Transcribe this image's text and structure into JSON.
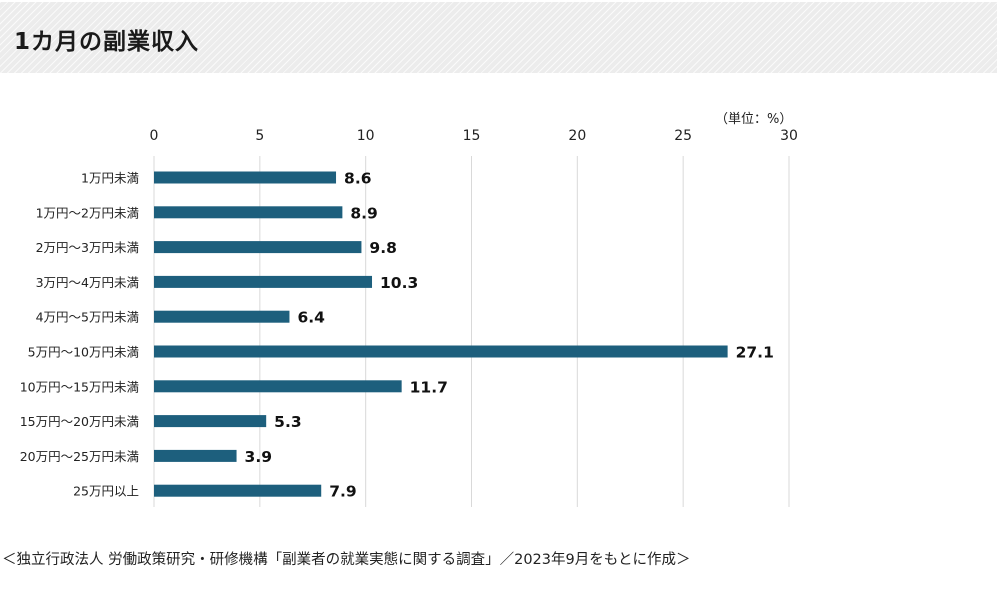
{
  "title": "1カ月の副業収入",
  "unit": "（単位：%）",
  "source": "＜独立行政法人 労働政策研究・研修機構「副業者の就業実態に関する調査」／2023年9月をもとに作成＞",
  "colors": {
    "bar": "#1d5f7d",
    "grid": "#d9d9d9",
    "band": "#ececec"
  },
  "chart_data": {
    "type": "bar",
    "orientation": "horizontal",
    "title": "1カ月の副業収入",
    "categories": [
      "1万円未満",
      "1万円～2万円未満",
      "2万円～3万円未満",
      "3万円～4万円未満",
      "4万円～5万円未満",
      "5万円～10万円未満",
      "10万円～15万円未満",
      "15万円～20万円未満",
      "20万円～25万円未満",
      "25万円以上"
    ],
    "values": [
      8.6,
      8.9,
      9.8,
      10.3,
      6.4,
      27.1,
      11.7,
      5.3,
      3.9,
      7.9
    ],
    "xlim": [
      0,
      30
    ],
    "xticks": [
      0,
      5,
      10,
      15,
      20,
      25,
      30
    ],
    "xaxis_position": "top",
    "grid": true,
    "data_labels": true
  }
}
